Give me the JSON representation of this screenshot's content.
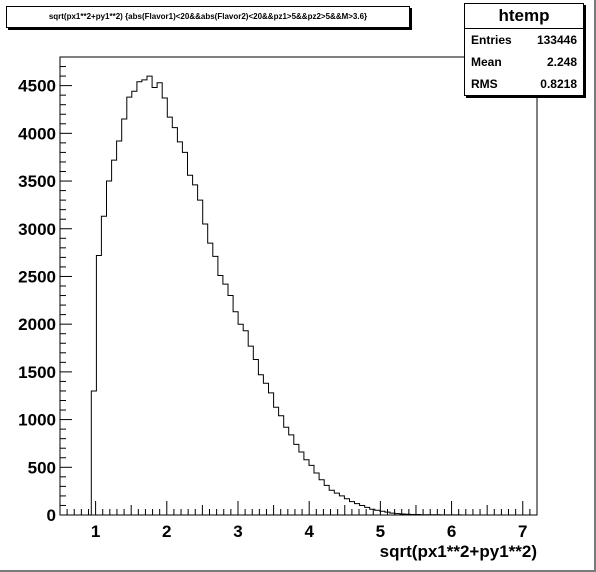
{
  "chart_data": {
    "type": "bar",
    "histogram": true,
    "title": "sqrt(px1**2+py1**2) {abs(Flavor1)<20&&abs(Flavor2)<20&&pz1>5&&pz2>5&&M>3.6}",
    "xlabel": "sqrt(px1**2+py1**2)",
    "ylabel": "",
    "xlim": [
      0.5,
      7.2
    ],
    "ylim": [
      0,
      4800
    ],
    "x_ticks": [
      1,
      2,
      3,
      4,
      5,
      6,
      7
    ],
    "y_ticks": [
      0,
      500,
      1000,
      1500,
      2000,
      2500,
      3000,
      3500,
      4000,
      4500
    ],
    "bin_start": 0.94,
    "bin_width": 0.0711,
    "values": [
      1300,
      2720,
      3130,
      3500,
      3720,
      3920,
      4150,
      4380,
      4440,
      4540,
      4560,
      4600,
      4480,
      4530,
      4370,
      4170,
      4060,
      3910,
      3800,
      3560,
      3460,
      3300,
      3050,
      2850,
      2710,
      2510,
      2420,
      2300,
      2130,
      2000,
      1930,
      1770,
      1630,
      1470,
      1380,
      1280,
      1130,
      1040,
      920,
      840,
      740,
      660,
      580,
      520,
      440,
      370,
      310,
      260,
      230,
      200,
      170,
      140,
      120,
      100,
      80,
      60,
      50,
      40,
      30,
      20,
      15,
      10,
      8,
      5,
      5,
      3,
      3,
      2,
      2,
      1,
      1,
      1,
      1,
      0,
      0
    ],
    "stats": {
      "name": "htemp",
      "rows": [
        {
          "label": "Entries",
          "value": "133446"
        },
        {
          "label": "Mean",
          "value": "2.248"
        },
        {
          "label": "RMS",
          "value": "0.8218"
        }
      ]
    },
    "colors": {
      "line": "#000000",
      "background": "#ffffff",
      "frame": "#d0d0d0"
    },
    "grid": false,
    "legend": "none"
  }
}
